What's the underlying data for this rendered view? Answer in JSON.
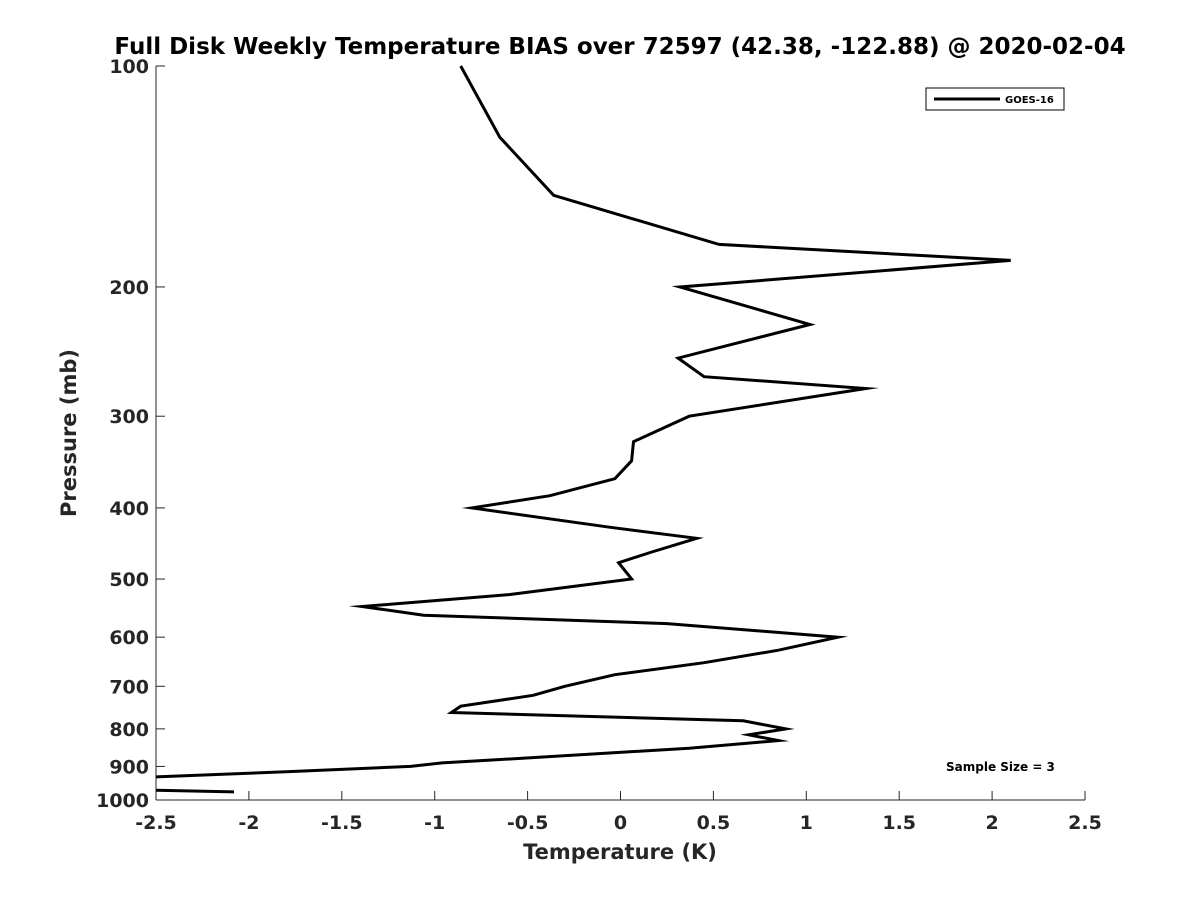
{
  "chart_data": {
    "type": "line",
    "title": "Full Disk Weekly Temperature BIAS over 72597 (42.38, -122.88) @ 2020-02-04",
    "xlabel": "Temperature (K)",
    "ylabel": "Pressure (mb)",
    "xlim": [
      -2.5,
      2.5
    ],
    "ylim": [
      100,
      1000
    ],
    "y_scale": "log",
    "y_reversed": true,
    "x_ticks": [
      -2.5,
      -2,
      -1.5,
      -1,
      -0.5,
      0,
      0.5,
      1,
      1.5,
      2,
      2.5
    ],
    "x_tick_labels": [
      "-2.5",
      "-2",
      "-1.5",
      "-1",
      "-0.5",
      "0",
      "0.5",
      "1",
      "1.5",
      "2",
      "2.5"
    ],
    "y_ticks": [
      100,
      200,
      300,
      400,
      500,
      600,
      700,
      800,
      900,
      1000
    ],
    "y_tick_labels": [
      "100",
      "200",
      "300",
      "400",
      "500",
      "600",
      "700",
      "800",
      "900",
      "1000"
    ],
    "grid": false,
    "legend": {
      "placement": "top-right",
      "entries": [
        "GOES-16"
      ]
    },
    "annotation": "Sample Size = 3",
    "series": [
      {
        "name": "GOES-16",
        "color": "#000000",
        "points": [
          [
            -0.86,
            100
          ],
          [
            -0.65,
            125
          ],
          [
            -0.36,
            150
          ],
          [
            0.53,
            175
          ],
          [
            2.1,
            184
          ],
          [
            0.32,
            200
          ],
          [
            1.02,
            225
          ],
          [
            0.31,
            250
          ],
          [
            0.45,
            265
          ],
          [
            1.32,
            275
          ],
          [
            0.37,
            300
          ],
          [
            0.07,
            325
          ],
          [
            0.06,
            345
          ],
          [
            -0.03,
            365
          ],
          [
            -0.38,
            385
          ],
          [
            -0.8,
            400
          ],
          [
            -0.06,
            425
          ],
          [
            0.41,
            440
          ],
          [
            0.16,
            460
          ],
          [
            -0.01,
            475
          ],
          [
            0.06,
            500
          ],
          [
            -0.6,
            525
          ],
          [
            -1.39,
            545
          ],
          [
            -1.06,
            560
          ],
          [
            0.25,
            575
          ],
          [
            1.17,
            600
          ],
          [
            0.85,
            625
          ],
          [
            0.45,
            650
          ],
          [
            -0.03,
            675
          ],
          [
            -0.3,
            700
          ],
          [
            -0.47,
            720
          ],
          [
            -0.86,
            745
          ],
          [
            -0.91,
            760
          ],
          [
            0.66,
            780
          ],
          [
            0.89,
            800
          ],
          [
            0.69,
            815
          ],
          [
            0.85,
            830
          ],
          [
            0.37,
            850
          ],
          [
            -0.45,
            875
          ],
          [
            -0.96,
            890
          ],
          [
            -1.13,
            900
          ],
          [
            -1.8,
            915
          ],
          [
            -2.5,
            930
          ]
        ]
      },
      {
        "name": "",
        "color": "#000000",
        "points": [
          [
            -2.5,
            970
          ],
          [
            -2.08,
            975
          ]
        ]
      }
    ]
  }
}
